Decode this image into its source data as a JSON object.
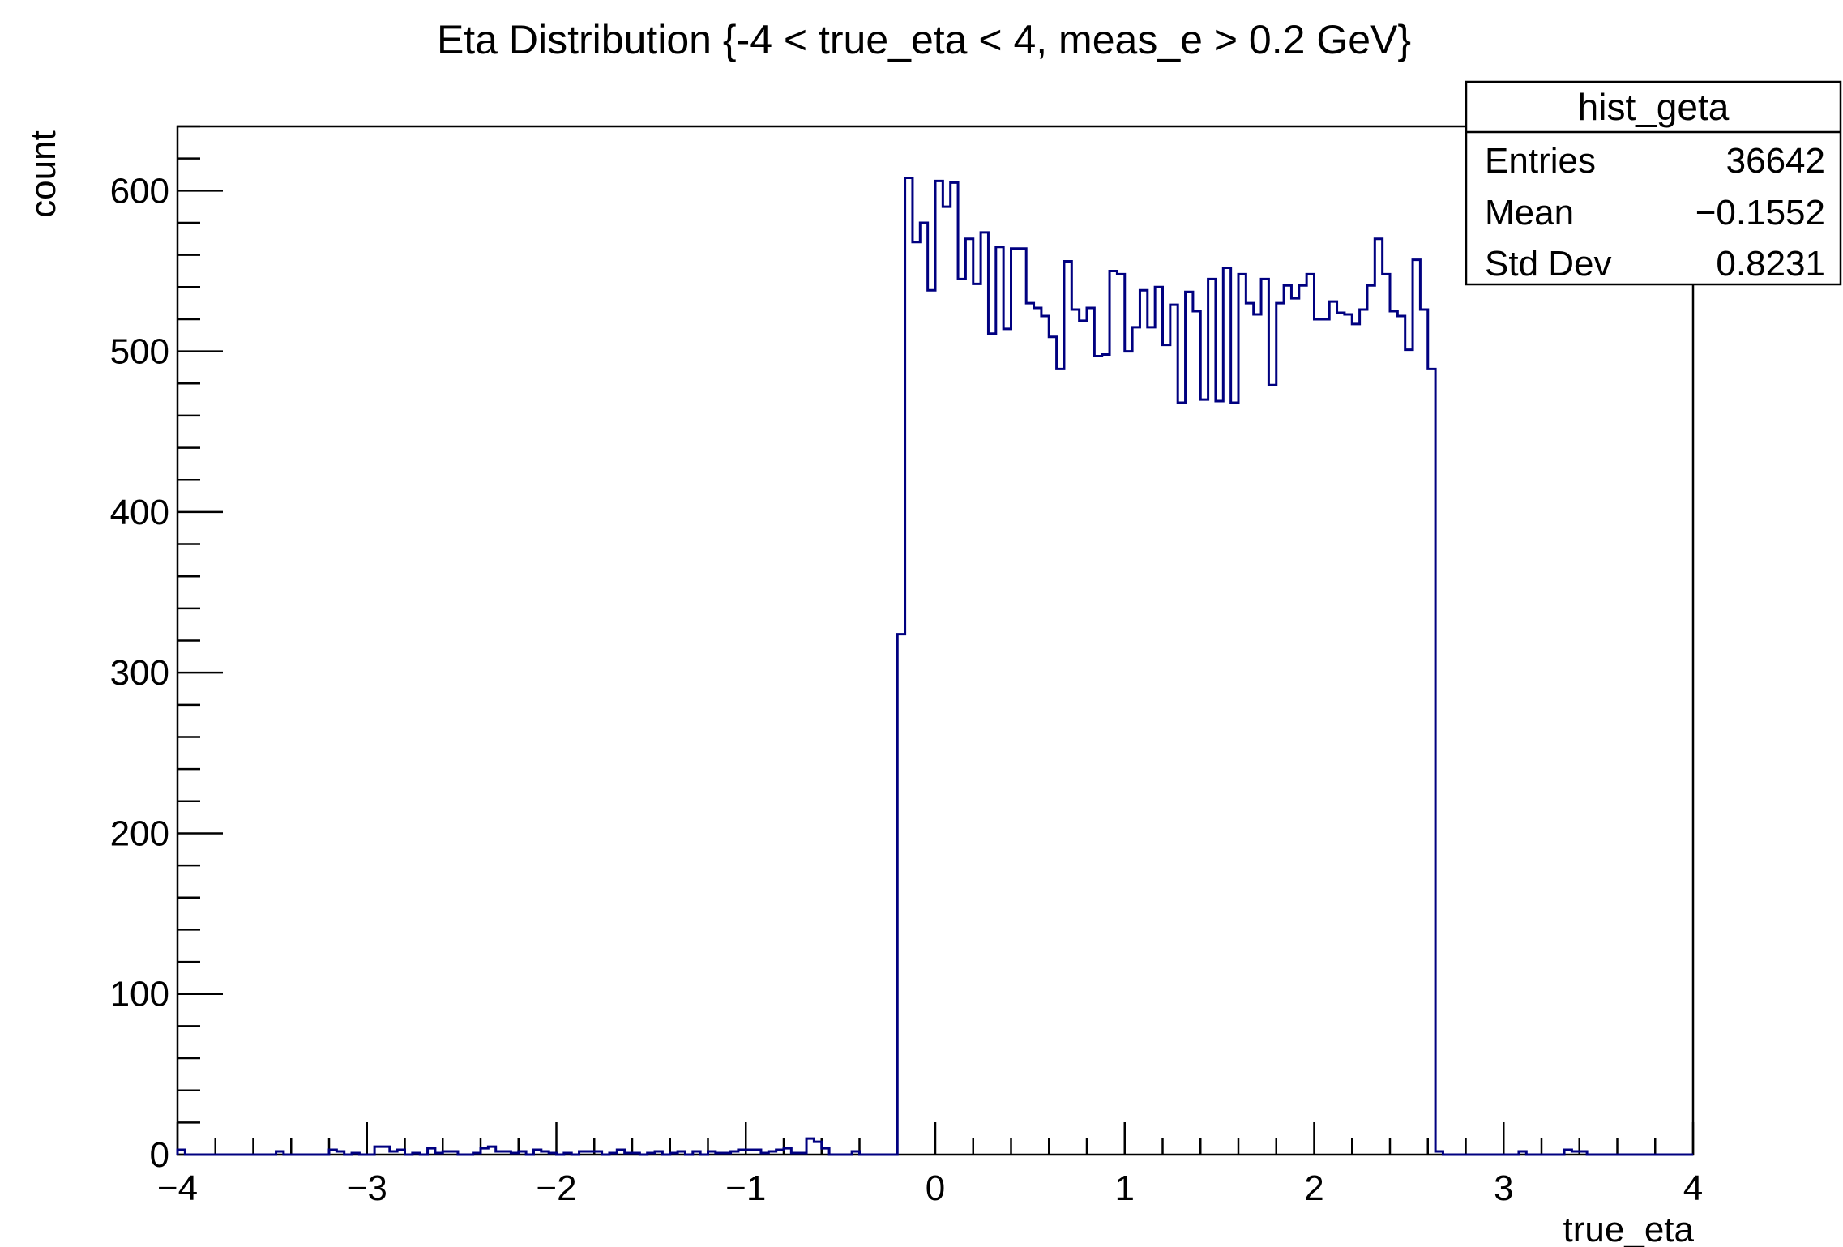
{
  "chart_data": {
    "type": "histogram",
    "title": "Eta Distribution {-4 < true_eta < 4, meas_e > 0.2 GeV}",
    "xlabel": "true_eta",
    "ylabel": "count",
    "xlim": [
      -4,
      4
    ],
    "ylim": [
      0,
      640
    ],
    "x_ticks": [
      -4,
      -3,
      -2,
      -1,
      0,
      1,
      2,
      3,
      4
    ],
    "x_tick_labels": [
      "−4",
      "−3",
      "−2",
      "−1",
      "0",
      "1",
      "2",
      "3",
      "4"
    ],
    "y_ticks": [
      0,
      100,
      200,
      300,
      400,
      500,
      600
    ],
    "y_tick_labels": [
      "0",
      "100",
      "200",
      "300",
      "400",
      "500",
      "600"
    ],
    "grid": false,
    "legend": "none",
    "line_color": "#000080",
    "bin_count": 200,
    "bin_width": 0.04,
    "x_start": -4,
    "values": [
      3,
      0,
      0,
      0,
      0,
      0,
      0,
      0,
      0,
      0,
      0,
      0,
      0,
      2,
      0,
      0,
      0,
      0,
      0,
      0,
      3,
      2,
      0,
      1,
      0,
      0,
      5,
      5,
      2,
      3,
      0,
      1,
      0,
      4,
      1,
      2,
      2,
      0,
      0,
      1,
      4,
      5,
      2,
      2,
      1,
      2,
      0,
      3,
      2,
      1,
      0,
      1,
      0,
      2,
      2,
      2,
      0,
      1,
      3,
      1,
      1,
      0,
      1,
      2,
      0,
      1,
      2,
      0,
      2,
      0,
      2,
      1,
      1,
      2,
      3,
      3,
      3,
      1,
      2,
      3,
      4,
      1,
      1,
      10,
      8,
      4,
      0,
      0,
      0,
      2,
      0,
      0,
      0,
      0,
      0,
      324,
      608,
      568,
      580,
      538,
      606,
      590,
      605,
      545,
      570,
      542,
      574,
      511,
      565,
      514,
      564,
      564,
      530,
      527,
      522,
      509,
      489,
      556,
      526,
      519,
      527,
      497,
      498,
      550,
      548,
      500,
      515,
      538,
      515,
      540,
      504,
      529,
      468,
      537,
      525,
      470,
      545,
      469,
      552,
      468,
      548,
      530,
      523,
      545,
      479,
      530,
      541,
      533,
      541,
      548,
      520,
      520,
      531,
      524,
      523,
      517,
      526,
      541,
      570,
      548,
      525,
      522,
      501,
      557,
      526,
      489,
      2,
      0,
      0,
      0,
      0,
      0,
      0,
      0,
      0,
      0,
      0,
      2,
      0,
      0,
      0,
      0,
      0,
      3,
      2,
      2,
      0,
      0,
      0,
      0,
      0,
      0,
      0,
      0,
      0,
      0,
      0,
      0,
      0,
      0
    ],
    "stats_box": {
      "name": "hist_geta",
      "rows": [
        {
          "label": "Entries",
          "value": "36642"
        },
        {
          "label": "Mean",
          "value": "−0.1552"
        },
        {
          "label": "Std Dev",
          "value": "0.8231"
        }
      ]
    }
  }
}
